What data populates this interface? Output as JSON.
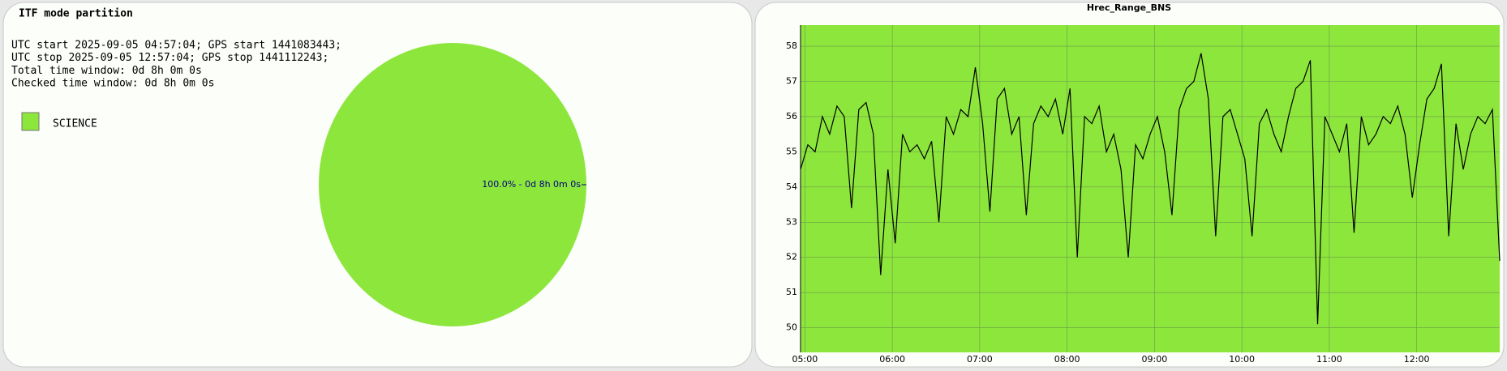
{
  "chart_data": [
    {
      "type": "pie",
      "title": "ITF mode partition",
      "info": [
        "UTC start 2025-09-05 04:57:04; GPS start 1441083443;",
        "UTC stop 2025-09-05 12:57:04; GPS stop 1441112243;",
        "Total time window: 0d 8h 0m 0s",
        "Checked time window: 0d 8h 0m 0s"
      ],
      "categories": [
        "SCIENCE"
      ],
      "values": [
        100
      ],
      "value_labels": [
        "100.0% - 0d 8h 0m 0s"
      ],
      "colors": [
        "#8de63c"
      ]
    },
    {
      "type": "line",
      "title": "Hrec_Range_BNS",
      "color": "#000000",
      "background": "#8de63c",
      "grid": true,
      "x": [
        "04:57",
        "05:02",
        "05:07",
        "05:12",
        "05:17",
        "05:22",
        "05:27",
        "05:32",
        "05:37",
        "05:42",
        "05:47",
        "05:52",
        "05:57",
        "06:02",
        "06:07",
        "06:12",
        "06:17",
        "06:22",
        "06:27",
        "06:32",
        "06:37",
        "06:42",
        "06:47",
        "06:52",
        "06:57",
        "07:02",
        "07:07",
        "07:12",
        "07:17",
        "07:22",
        "07:27",
        "07:32",
        "07:37",
        "07:42",
        "07:47",
        "07:52",
        "07:57",
        "08:02",
        "08:07",
        "08:12",
        "08:17",
        "08:22",
        "08:27",
        "08:32",
        "08:37",
        "08:42",
        "08:47",
        "08:52",
        "08:57",
        "09:02",
        "09:07",
        "09:12",
        "09:17",
        "09:22",
        "09:27",
        "09:32",
        "09:37",
        "09:42",
        "09:47",
        "09:52",
        "09:57",
        "10:02",
        "10:07",
        "10:12",
        "10:17",
        "10:22",
        "10:27",
        "10:32",
        "10:37",
        "10:42",
        "10:47",
        "10:52",
        "10:57",
        "11:02",
        "11:07",
        "11:12",
        "11:17",
        "11:22",
        "11:27",
        "11:32",
        "11:37",
        "11:42",
        "11:47",
        "11:52",
        "11:57",
        "12:02",
        "12:07",
        "12:12",
        "12:17",
        "12:22",
        "12:27",
        "12:32",
        "12:37",
        "12:42",
        "12:47",
        "12:52",
        "12:57"
      ],
      "values": [
        54.5,
        55.2,
        55.0,
        56.0,
        55.5,
        56.3,
        56.0,
        53.4,
        56.2,
        56.4,
        55.5,
        51.5,
        54.5,
        52.4,
        55.5,
        55.0,
        55.2,
        54.8,
        55.3,
        53.0,
        56.0,
        55.5,
        56.2,
        56.0,
        57.4,
        55.8,
        53.3,
        56.5,
        56.8,
        55.5,
        56.0,
        53.2,
        55.8,
        56.3,
        56.0,
        56.5,
        55.5,
        56.8,
        52.0,
        56.0,
        55.8,
        56.3,
        55.0,
        55.5,
        54.5,
        52.0,
        55.2,
        54.8,
        55.5,
        56.0,
        55.0,
        53.2,
        56.2,
        56.8,
        57.0,
        57.8,
        56.5,
        52.6,
        56.0,
        56.2,
        55.5,
        54.8,
        52.6,
        55.8,
        56.2,
        55.5,
        55.0,
        56.0,
        56.8,
        57.0,
        57.6,
        50.1,
        56.0,
        55.5,
        55.0,
        55.8,
        52.7,
        56.0,
        55.2,
        55.5,
        56.0,
        55.8,
        56.3,
        55.5,
        53.7,
        55.2,
        56.5,
        56.8,
        57.5,
        52.6,
        55.8,
        54.5,
        55.5,
        56.0,
        55.8,
        56.2,
        51.9
      ],
      "xlim": [
        "04:57",
        "12:57"
      ],
      "xticks": [
        "05:00",
        "06:00",
        "07:00",
        "08:00",
        "09:00",
        "10:00",
        "11:00",
        "12:00"
      ],
      "ylim": [
        49.3,
        58.6
      ],
      "yticks": [
        50,
        51,
        52,
        53,
        54,
        55,
        56,
        57,
        58
      ]
    }
  ]
}
